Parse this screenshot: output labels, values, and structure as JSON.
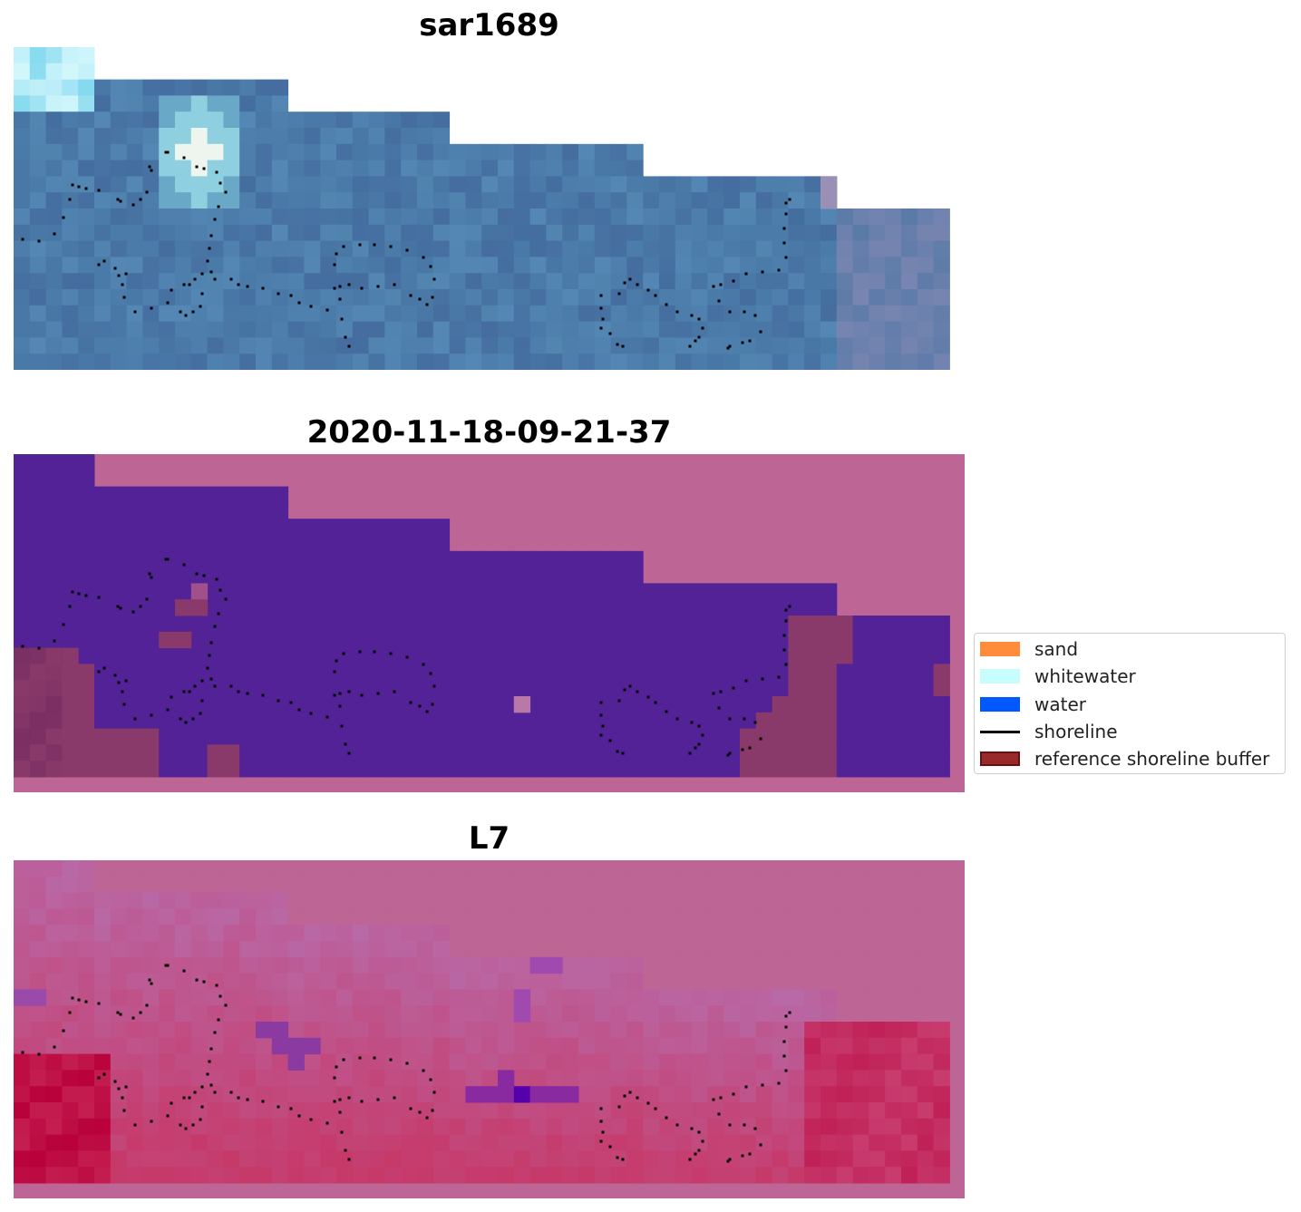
{
  "panels": [
    {
      "title": "sar1689"
    },
    {
      "title": "2020-11-18-09-21-37"
    },
    {
      "title": "L7"
    }
  ],
  "legend": {
    "items": [
      {
        "label": "sand",
        "color": "#ff8c3a",
        "kind": "patch"
      },
      {
        "label": "whitewater",
        "color": "#c8fdfd",
        "kind": "patch"
      },
      {
        "label": "water",
        "color": "#0059ff",
        "kind": "patch"
      },
      {
        "label": "shoreline",
        "color": "#000000",
        "kind": "line"
      },
      {
        "label": "reference shoreline buffer",
        "color": "#9a2a2a",
        "kind": "patch"
      }
    ]
  },
  "colors": {
    "background_pink": "#bd6595",
    "water_purple": "#522296",
    "buffer_maroon": "#8a3a6a",
    "sar_blue": "#4a7aa8",
    "index_red": "#c0003a"
  }
}
